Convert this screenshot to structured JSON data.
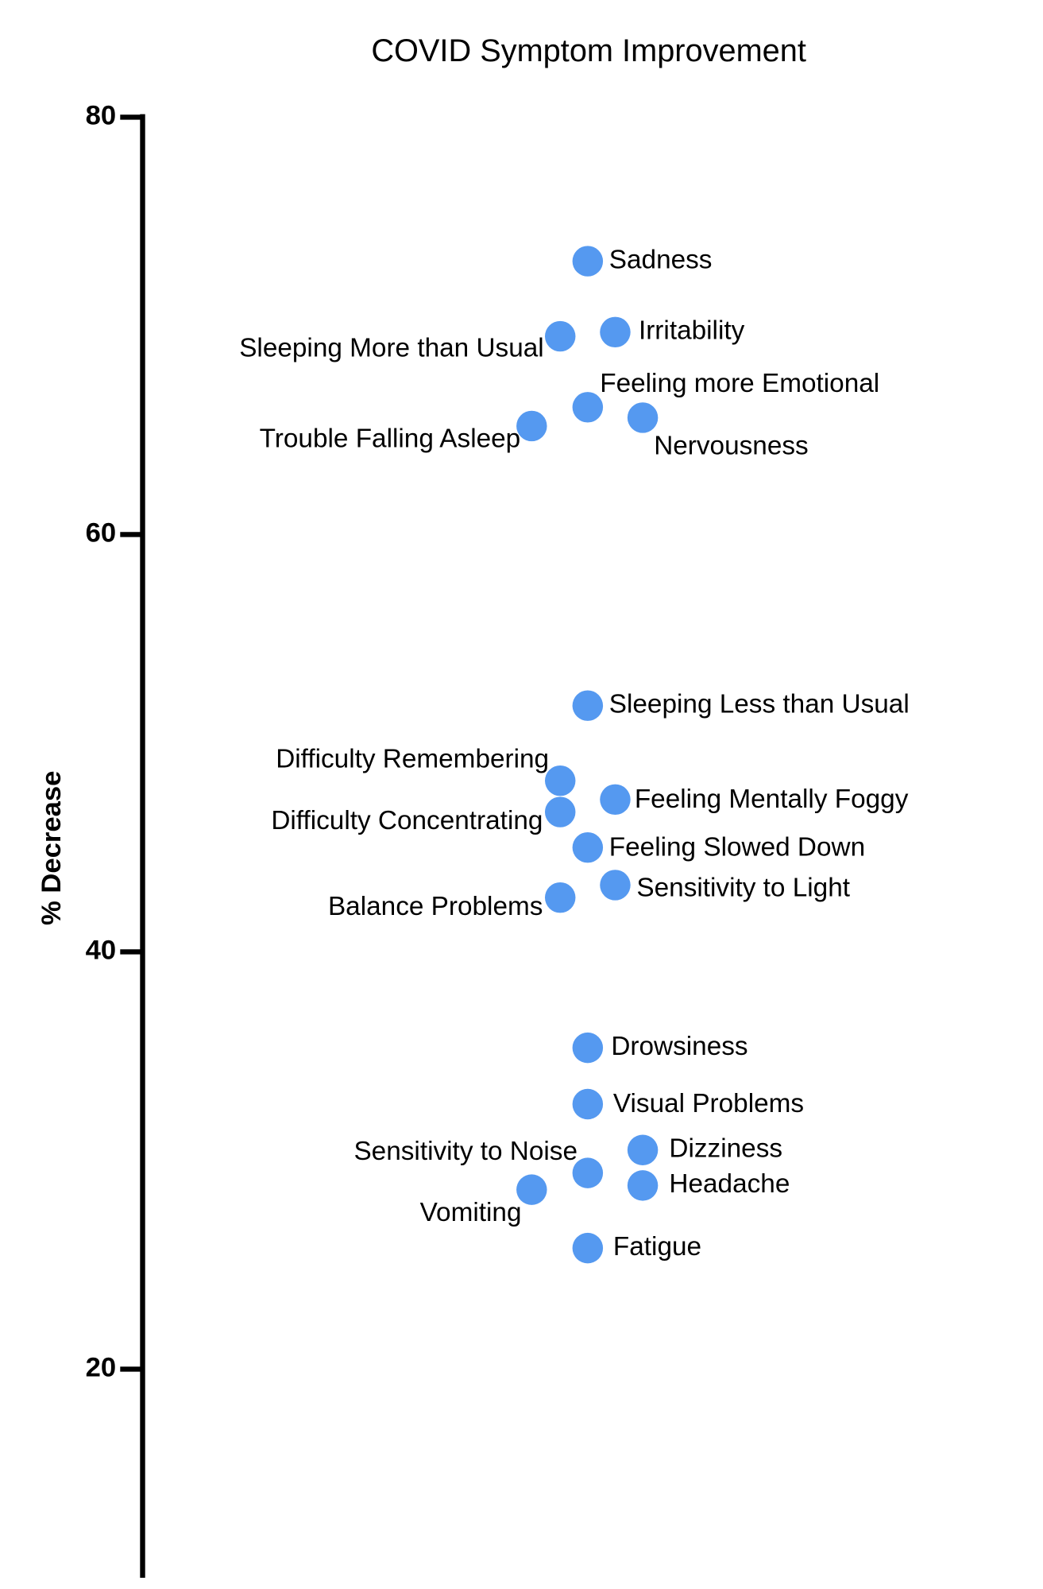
{
  "chart_data": {
    "type": "scatter",
    "title": "COVID Symptom Improvement",
    "y_label": "% Decrease",
    "categories": [
      "Sadness",
      "Irritability",
      "Sleeping More than Usual",
      "Feeling more Emotional",
      "Nervousness",
      "Trouble Falling Asleep",
      "Sleeping Less than Usual",
      "Difficulty Remembering",
      "Feeling Mentally Foggy",
      "Difficulty Concentrating",
      "Feeling Slowed Down",
      "Sensitivity to Light",
      "Balance Problems",
      "Drowsiness",
      "Visual Problems",
      "Dizziness",
      "Sensitivity to Noise",
      "Headache",
      "Vomiting",
      "Fatigue"
    ],
    "values": [
      73.1,
      69.7,
      69.5,
      66.1,
      65.6,
      65.2,
      51.8,
      48.2,
      47.3,
      46.7,
      45.0,
      43.2,
      42.6,
      35.4,
      32.7,
      30.5,
      29.4,
      28.8,
      28.6,
      25.8
    ],
    "color": "#5599f0",
    "ylim": [
      10,
      80
    ],
    "yticks": [
      20,
      40,
      60,
      80
    ]
  }
}
